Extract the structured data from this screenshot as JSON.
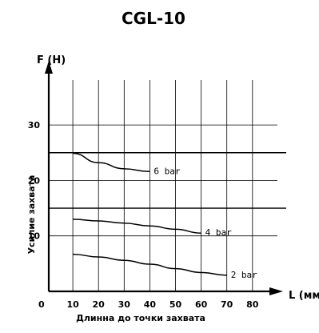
{
  "chart_data": {
    "type": "line",
    "title": "CGL-10",
    "ylabel": "F (H)",
    "xlabel": "L (мм)",
    "ylabel_caption": "Усилие захвата",
    "xlabel_caption": "Длинна до точки захвата",
    "xlim": [
      0,
      85
    ],
    "ylim": [
      0,
      37
    ],
    "origin_label": "0",
    "x_ticks": [
      10,
      20,
      30,
      40,
      50,
      60,
      70,
      80
    ],
    "y_ticks": [
      10,
      20,
      30
    ],
    "reference_lines_y": [
      15,
      25
    ],
    "series": [
      {
        "name": "6 bar",
        "x": [
          10,
          20,
          30,
          40
        ],
        "y": [
          24.9,
          23.2,
          22.1,
          21.6
        ]
      },
      {
        "name": "4 bar",
        "x": [
          10,
          20,
          30,
          40,
          50,
          60
        ],
        "y": [
          13.0,
          12.7,
          12.3,
          11.8,
          11.2,
          10.5
        ]
      },
      {
        "name": "2 bar",
        "x": [
          10,
          20,
          30,
          40,
          50,
          60,
          70
        ],
        "y": [
          6.7,
          6.2,
          5.6,
          4.9,
          4.1,
          3.4,
          2.9
        ]
      }
    ],
    "grid": true,
    "line_color": "#000000"
  }
}
